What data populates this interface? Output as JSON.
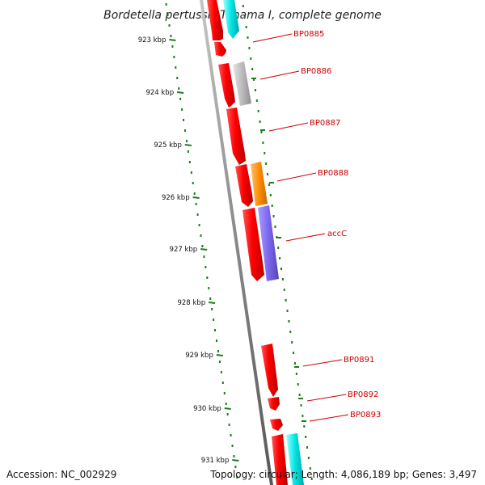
{
  "title": "Bordetella pertussis Tohama I, complete genome",
  "accession": "Accession: NC_002929",
  "topology": "Topology: circular; Length: 4,086,189 bp; Genes: 3,497",
  "ticks": [
    "923 kbp",
    "924 kbp",
    "925 kbp",
    "926 kbp",
    "927 kbp",
    "928 kbp",
    "929 kbp",
    "930 kbp",
    "931 kbp"
  ],
  "genes": [
    {
      "label": "BP0885",
      "color": "#ff0000"
    },
    {
      "label": "BP0886",
      "color": "#bbbbbb"
    },
    {
      "label": "BP0887",
      "color": "#ff0000"
    },
    {
      "label": "BP0888",
      "color": "#ff8c00"
    },
    {
      "label": "accC",
      "color": "#7b68ee"
    },
    {
      "label": "BP0891",
      "color": "#ff0000"
    },
    {
      "label": "BP0892",
      "color": "#ff0000"
    },
    {
      "label": "BP0893",
      "color": "#ff0000"
    }
  ],
  "colors": {
    "cds_red": "#ff0000",
    "cds_cyan": "#00e5e5",
    "cds_gray": "#bbbbbb",
    "cds_orange": "#ff8c00",
    "cds_purple": "#7b68ee",
    "backbone": "#888888",
    "tick_green": "#1a7f1a",
    "label_red": "#cc0000"
  }
}
